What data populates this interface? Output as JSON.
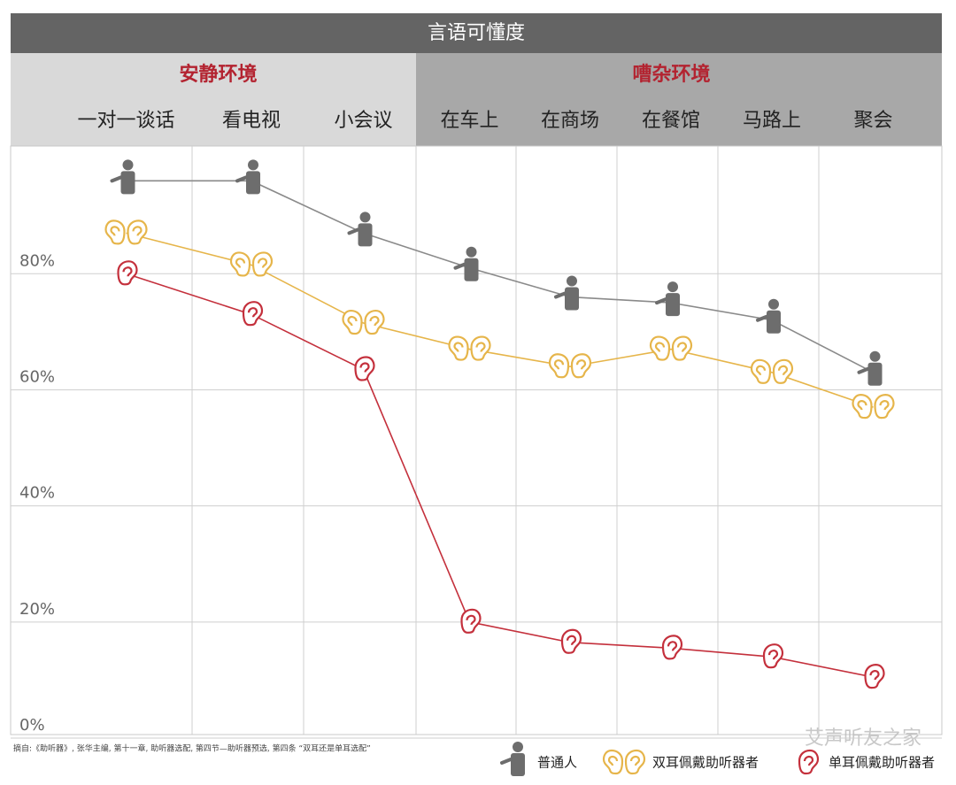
{
  "chart_data": {
    "type": "line",
    "title": "言语可懂度",
    "groups": [
      {
        "label": "安静环境",
        "categories": [
          "一对一谈话",
          "看电视",
          "小会议"
        ]
      },
      {
        "label": "嘈杂环境",
        "categories": [
          "在车上",
          "在商场",
          "在餐馆",
          "马路上",
          "聚会"
        ]
      }
    ],
    "series": [
      {
        "name": "普通人",
        "color": "#6d6d6d",
        "line_color": "#8a8a8a",
        "marker": "person",
        "values": [
          96,
          96,
          87,
          81,
          76,
          75,
          72,
          63
        ]
      },
      {
        "name": "双耳佩戴助听器者",
        "color": "#e6b54a",
        "line_color": "#e6b54a",
        "marker": "double-ear",
        "values": [
          87,
          81.5,
          71.5,
          67,
          64,
          67,
          63,
          57
        ]
      },
      {
        "name": "单耳佩戴助听器者",
        "color": "#c4303c",
        "line_color": "#c4303c",
        "marker": "ear",
        "values": [
          80,
          73,
          63.5,
          20,
          16.5,
          15.5,
          14,
          10.5
        ]
      }
    ],
    "ylim": [
      0,
      102
    ],
    "yticks": [
      {
        "value": 0,
        "label": "0%"
      },
      {
        "value": 20,
        "label": "20%"
      },
      {
        "value": 40,
        "label": "40%"
      },
      {
        "value": 60,
        "label": "60%"
      },
      {
        "value": 80,
        "label": "80%"
      }
    ],
    "grid": true,
    "source": "摘自:《助听器》, 张华主编, 第十一章, 助听器选配, 第四节—助听器预选, 第四条 “双耳还是单耳选配”",
    "watermark": "艾声听友之家"
  }
}
